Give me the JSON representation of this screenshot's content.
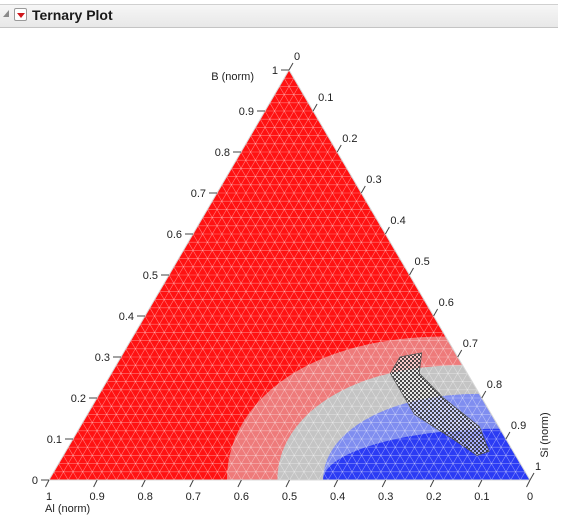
{
  "header": {
    "title": "Ternary Plot",
    "collapse_icon": "disclosure-triangle-icon",
    "menu_icon": "red-menu-triangle-icon"
  },
  "chart_data": {
    "type": "ternary",
    "axes": {
      "bottom": {
        "label": "Al (norm)",
        "ticks": [
          "1",
          "0.9",
          "0.8",
          "0.7",
          "0.6",
          "0.5",
          "0.4",
          "0.3",
          "0.2",
          "0.1",
          "0"
        ]
      },
      "left": {
        "label": "B (norm)",
        "ticks": [
          "0",
          "0.1",
          "0.2",
          "0.3",
          "0.4",
          "0.5",
          "0.6",
          "0.7",
          "0.8",
          "0.9",
          "1"
        ]
      },
      "right": {
        "label": "Si (norm)",
        "ticks": [
          "0",
          "0.1",
          "0.2",
          "0.3",
          "0.4",
          "0.5",
          "0.6",
          "0.7",
          "0.8",
          "0.9",
          "1"
        ]
      }
    },
    "grid": true,
    "contour_fill": {
      "levels": [
        "red",
        "light-red",
        "light-gray",
        "light-blue",
        "blue"
      ],
      "colors": [
        "#ff1212",
        "#ee7a7a",
        "#c4c4c4",
        "#7f8df0",
        "#2b3bf4"
      ]
    },
    "contours": [
      {
        "name": "light-red",
        "color": "#ee7a7a",
        "B_at_Al0": 0.35,
        "Al_at_B0": 0.63
      },
      {
        "name": "light-gray",
        "color": "#c4c4c4",
        "B_at_Al0": 0.28,
        "Al_at_B0": 0.525
      },
      {
        "name": "light-blue",
        "color": "#7f8df0",
        "B_at_Al0": 0.21,
        "Al_at_B0": 0.43
      },
      {
        "name": "blue",
        "color": "#2b3bf4",
        "B_at_Al0": 0.125,
        "Al_at_B0": 0.43
      }
    ],
    "hatched_region": {
      "style": "checkered",
      "vertices_B_Al": [
        [
          0.31,
          0.07
        ],
        [
          0.26,
          0.1
        ],
        [
          0.2,
          0.08
        ],
        [
          0.13,
          0.04
        ],
        [
          0.07,
          0.05
        ],
        [
          0.06,
          0.08
        ],
        [
          0.1,
          0.11
        ],
        [
          0.16,
          0.16
        ],
        [
          0.26,
          0.16
        ],
        [
          0.3,
          0.12
        ]
      ]
    }
  }
}
